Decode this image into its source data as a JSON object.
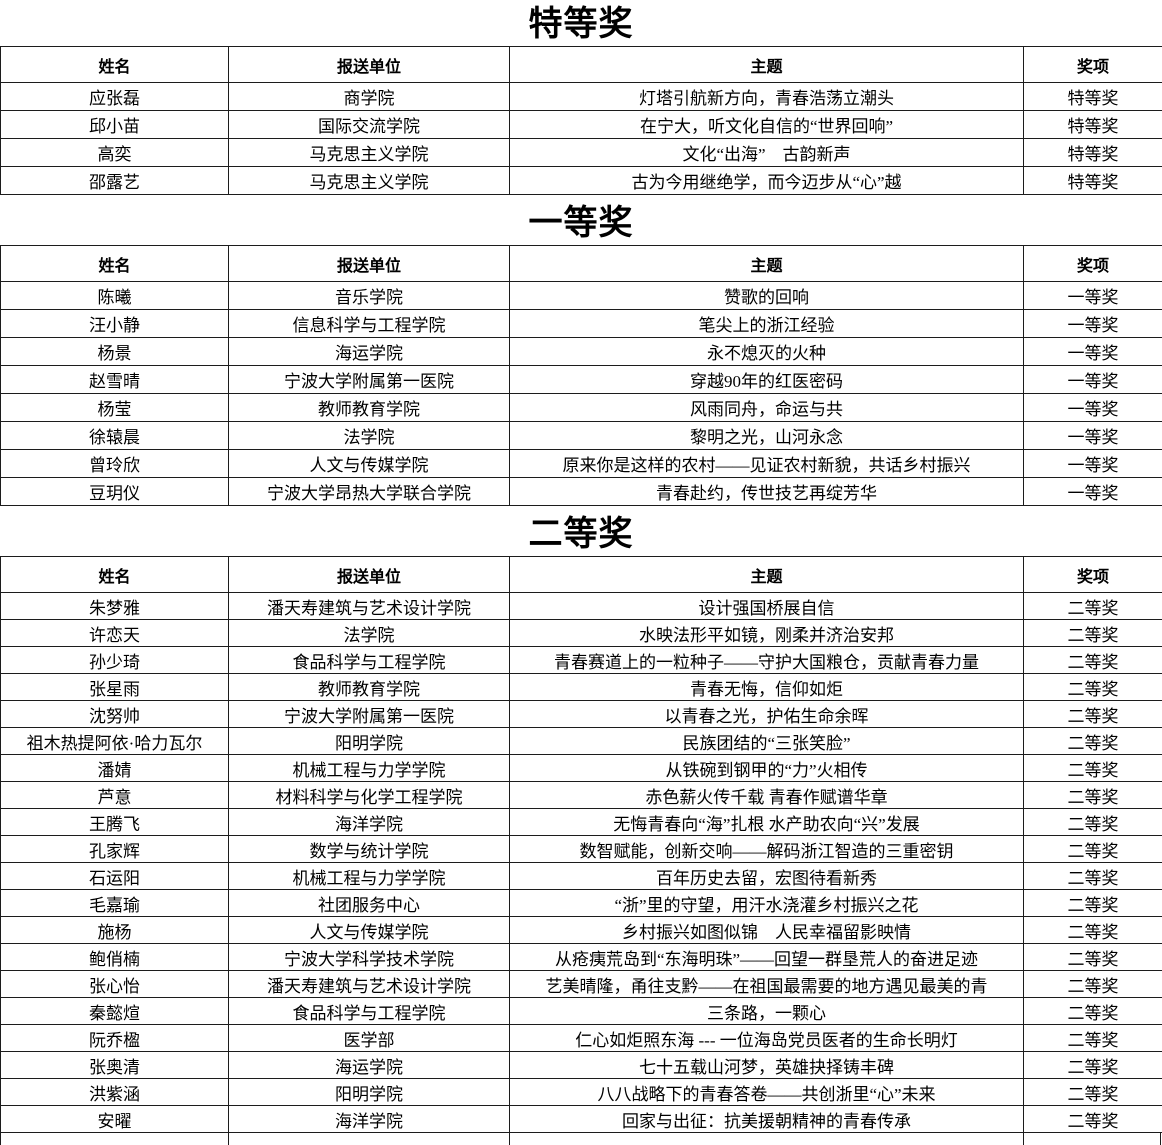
{
  "columns": [
    "姓名",
    "报送单位",
    "主题",
    "奖项"
  ],
  "sections": [
    {
      "title": "特等奖",
      "rows": [
        [
          "应张磊",
          "商学院",
          "灯塔引航新方向，青春浩荡立潮头",
          "特等奖"
        ],
        [
          "邱小苗",
          "国际交流学院",
          "在宁大，听文化自信的“世界回响”",
          "特等奖"
        ],
        [
          "高奕",
          "马克思主义学院",
          "文化“出海”　古韵新声",
          "特等奖"
        ],
        [
          "邵露艺",
          "马克思主义学院",
          "古为今用继绝学，而今迈步从“心”越",
          "特等奖"
        ]
      ]
    },
    {
      "title": "一等奖",
      "rows": [
        [
          "陈曦",
          "音乐学院",
          "赞歌的回响",
          "一等奖"
        ],
        [
          "汪小静",
          "信息科学与工程学院",
          "笔尖上的浙江经验",
          "一等奖"
        ],
        [
          "杨景",
          "海运学院",
          "永不熄灭的火种",
          "一等奖"
        ],
        [
          "赵雪晴",
          "宁波大学附属第一医院",
          "穿越90年的红医密码",
          "一等奖"
        ],
        [
          "杨莹",
          "教师教育学院",
          "风雨同舟，命运与共",
          "一等奖"
        ],
        [
          "徐辕晨",
          "法学院",
          "黎明之光，山河永念",
          "一等奖"
        ],
        [
          "曾玲欣",
          "人文与传媒学院",
          "原来你是这样的农村——见证农村新貌，共话乡村振兴",
          "一等奖"
        ],
        [
          "豆玥仪",
          "宁波大学昂热大学联合学院",
          "青春赴约，传世技艺再绽芳华",
          "一等奖"
        ]
      ]
    },
    {
      "title": "二等奖",
      "rows": [
        [
          "朱梦雅",
          "潘天寿建筑与艺术设计学院",
          "设计强国桥展自信",
          "二等奖"
        ],
        [
          "许恋天",
          "法学院",
          "水映法形平如镜，刚柔并济治安邦",
          "二等奖"
        ],
        [
          "孙少琦",
          "食品科学与工程学院",
          "青春赛道上的一粒种子——守护大国粮仓，贡献青春力量",
          "二等奖"
        ],
        [
          "张星雨",
          "教师教育学院",
          "青春无悔，信仰如炬",
          "二等奖"
        ],
        [
          "沈努帅",
          "宁波大学附属第一医院",
          "以青春之光，护佑生命余晖",
          "二等奖"
        ],
        [
          "祖木热提阿依·哈力瓦尔",
          "阳明学院",
          "民族团结的“三张笑脸”",
          "二等奖"
        ],
        [
          "潘婧",
          "机械工程与力学学院",
          "从铁碗到钢甲的“力”火相传",
          "二等奖"
        ],
        [
          "芦意",
          "材料科学与化学工程学院",
          "赤色薪火传千载 青春作赋谱华章",
          "二等奖"
        ],
        [
          "王腾飞",
          "海洋学院",
          "无悔青春向“海”扎根 水产助农向“兴”发展",
          "二等奖"
        ],
        [
          "孔家辉",
          "数学与统计学院",
          "数智赋能，创新交响——解码浙江智造的三重密钥",
          "二等奖"
        ],
        [
          "石运阳",
          "机械工程与力学学院",
          "百年历史去留，宏图待看新秀",
          "二等奖"
        ],
        [
          "毛嘉瑜",
          "社团服务中心",
          "“浙”里的守望，用汗水浇灌乡村振兴之花",
          "二等奖"
        ],
        [
          "施杨",
          "人文与传媒学院",
          "乡村振兴如图似锦　人民幸福留影映情",
          "二等奖"
        ],
        [
          "鲍俏楠",
          "宁波大学科学技术学院",
          "从疮痍荒岛到“东海明珠”——回望一群垦荒人的奋进足迹",
          "二等奖"
        ],
        [
          "张心怡",
          "潘天寿建筑与艺术设计学院",
          "艺美晴隆，甬往支黔——在祖国最需要的地方遇见最美的青",
          "二等奖"
        ],
        [
          "秦懿煊",
          "食品科学与工程学院",
          "三条路，一颗心",
          "二等奖"
        ],
        [
          "阮乔楹",
          "医学部",
          "仁心如炬照东海 --- 一位海岛党员医者的生命长明灯",
          "二等奖"
        ],
        [
          "张奥清",
          "海运学院",
          "七十五载山河梦，英雄抉择铸丰碑",
          "二等奖"
        ],
        [
          "洪紫涵",
          "阳明学院",
          "八八战略下的青春答卷——共创浙里“心”未来",
          "二等奖"
        ],
        [
          "安曜",
          "海洋学院",
          "回家与出征：抗美援朝精神的青春传承",
          "二等奖"
        ]
      ]
    }
  ]
}
